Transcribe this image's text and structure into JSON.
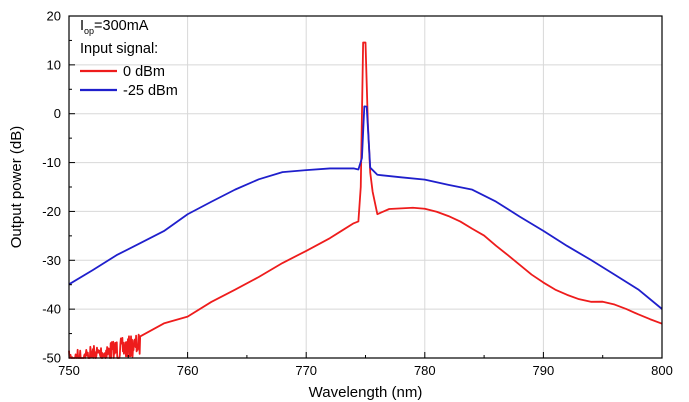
{
  "chart_data": {
    "type": "line",
    "title": "",
    "xlabel": "Wavelength (nm)",
    "ylabel": "Output power (dB)",
    "xlim": [
      750,
      800
    ],
    "ylim": [
      -50,
      20
    ],
    "x_ticks": [
      750,
      760,
      770,
      780,
      790,
      800
    ],
    "y_ticks": [
      -50,
      -40,
      -30,
      -20,
      -10,
      0,
      10,
      20
    ],
    "grid": true,
    "legend": {
      "placement": "top-left",
      "condition_main": "I",
      "condition_sub": "op",
      "condition_rest": "=300mA",
      "header": "Input signal:"
    },
    "series": [
      {
        "name": "0 dBm",
        "color": "#ee1c1c",
        "x": [
          750,
          752,
          754,
          756,
          758,
          760,
          762,
          764,
          766,
          768,
          770,
          772,
          773,
          774,
          774.4,
          774.6,
          774.8,
          775.0,
          775.2,
          775.4,
          775.6,
          776,
          777,
          778,
          779,
          780,
          781,
          782,
          783,
          784,
          785,
          786,
          787,
          788,
          789,
          790,
          791,
          792,
          793,
          794,
          795,
          796,
          797,
          798,
          799,
          800
        ],
        "y": [
          -47,
          -47,
          -45,
          -44,
          -43,
          -41.5,
          -38.5,
          -36,
          -33.5,
          -30.5,
          -28,
          -25.5,
          -24,
          -22.5,
          -22,
          -15,
          14.5,
          14.5,
          -2,
          -12,
          -16,
          -20.5,
          -19.5,
          -19.3,
          -19.3,
          -19.5,
          -20,
          -21,
          -22,
          -23.5,
          -25,
          -27,
          -29,
          -31,
          -33,
          -34.5,
          -36,
          -37,
          -38,
          -38.5,
          -38.5,
          -39,
          -40,
          -41,
          -42,
          -43
        ]
      },
      {
        "name": "-25 dBm",
        "color": "#1f1fcc",
        "x": [
          750,
          752,
          754,
          756,
          758,
          760,
          762,
          764,
          766,
          768,
          770,
          772,
          774,
          774.4,
          774.7,
          774.9,
          775.1,
          775.4,
          776,
          778,
          780,
          782,
          784,
          786,
          788,
          790,
          792,
          794,
          796,
          798,
          800
        ],
        "y": [
          -35,
          -32,
          -29,
          -26.5,
          -24,
          -20.5,
          -18,
          -15.5,
          -13.5,
          -12,
          -11.5,
          -11.2,
          -11.2,
          -11.5,
          -9,
          1.5,
          1.5,
          -11,
          -12.5,
          -13,
          -13.5,
          -14.5,
          -15.5,
          -18,
          -21,
          -24,
          -27,
          -30,
          -33,
          -36,
          -40
        ]
      }
    ],
    "noise_segment": {
      "series": 0,
      "x_start": 750,
      "x_end": 756,
      "y_low": -50,
      "y_high": -45
    }
  }
}
